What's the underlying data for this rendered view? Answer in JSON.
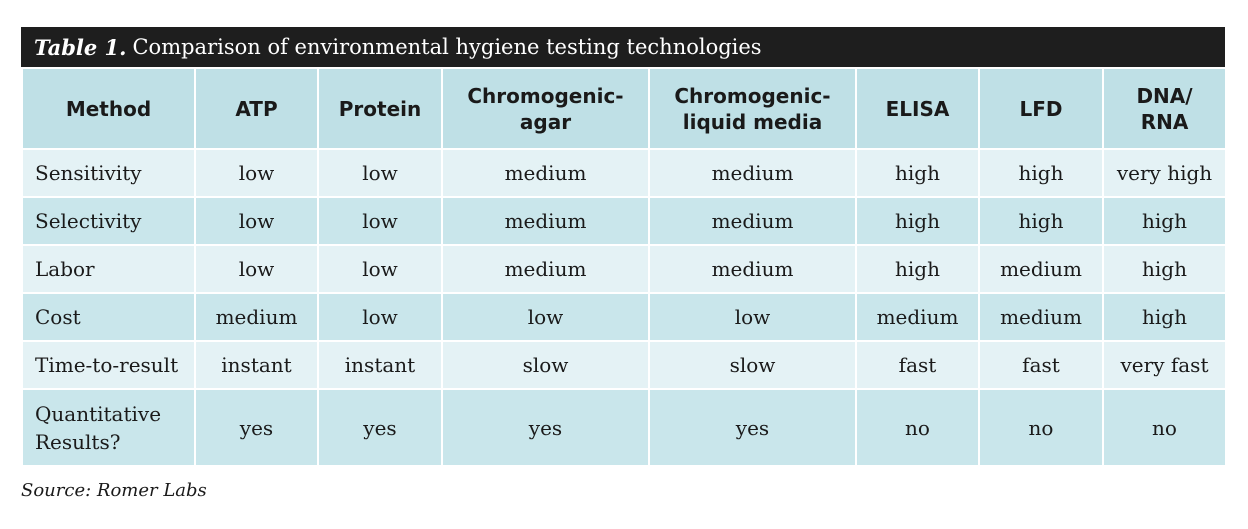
{
  "table": {
    "caption_label": "Table 1.",
    "caption_text": "Comparison of environmental hygiene testing technologies",
    "headers": [
      "Method",
      "ATP",
      "Protein",
      "Chromogenic-\nagar",
      "Chromogenic-\nliquid media",
      "ELISA",
      "LFD",
      "DNA/\nRNA"
    ],
    "rows": [
      [
        "Sensitivity",
        "low",
        "low",
        "medium",
        "medium",
        "high",
        "high",
        "very high"
      ],
      [
        "Selectivity",
        "low",
        "low",
        "medium",
        "medium",
        "high",
        "high",
        "high"
      ],
      [
        "Labor",
        "low",
        "low",
        "medium",
        "medium",
        "high",
        "medium",
        "high"
      ],
      [
        "Cost",
        "medium",
        "low",
        "low",
        "low",
        "medium",
        "medium",
        "high"
      ],
      [
        "Time-to-result",
        "instant",
        "instant",
        "slow",
        "slow",
        "fast",
        "fast",
        "very fast"
      ],
      [
        "Quantitative\nResults?",
        "yes",
        "yes",
        "yes",
        "yes",
        "no",
        "no",
        "no"
      ]
    ]
  },
  "source": "Source: Romer Labs"
}
